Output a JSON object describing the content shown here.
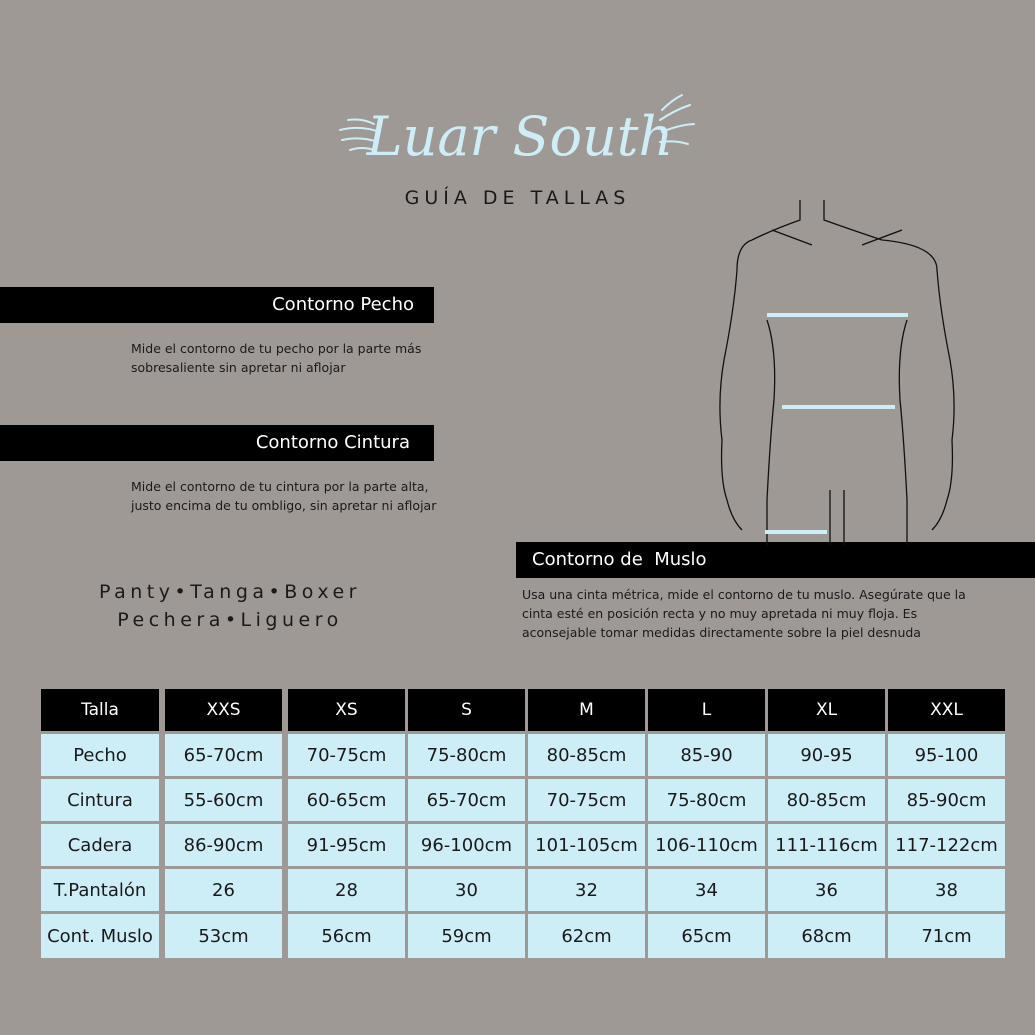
{
  "brand": "Luar South",
  "subtitle": "GUÍA DE TALLAS",
  "sections": [
    {
      "title": "Contorno Pecho",
      "description": "Mide el contorno de tu pecho por la parte más sobresaliente sin apretar ni aflojar"
    },
    {
      "title": "Contorno Cintura",
      "description": "Mide el contorno de tu cintura por la parte alta, justo encima de tu ombligo, sin apretar ni aflojar"
    },
    {
      "title": "Contorno de  Muslo",
      "description": "Usa una cinta métrica, mide el contorno de tu muslo. Asegúrate que la cinta esté en posición recta y no muy apretada ni muy floja. Es aconsejable tomar medidas directamente sobre la piel desnuda"
    }
  ],
  "products": [
    "Panty•Tanga•Boxer",
    "Pechera•Liguero"
  ],
  "colors": {
    "background": "#9f9996",
    "cell": "#cdeef7",
    "header": "#000000",
    "accent": "#cdeef7"
  },
  "table": {
    "headers": [
      "Talla",
      "XXS",
      "XS",
      "S",
      "M",
      "L",
      "XL",
      "XXL"
    ],
    "rows": [
      [
        "Pecho",
        "65-70cm",
        "70-75cm",
        "75-80cm",
        "80-85cm",
        "85-90",
        "90-95",
        "95-100"
      ],
      [
        "Cintura",
        "55-60cm",
        "60-65cm",
        "65-70cm",
        "70-75cm",
        "75-80cm",
        "80-85cm",
        "85-90cm"
      ],
      [
        "Cadera",
        "86-90cm",
        "91-95cm",
        "96-100cm",
        "101-105cm",
        "106-110cm",
        "111-116cm",
        "117-122cm"
      ],
      [
        "T.Pantalón",
        "26",
        "28",
        "30",
        "32",
        "34",
        "36",
        "38"
      ],
      [
        "Cont. Muslo",
        "53cm",
        "56cm",
        "59cm",
        "62cm",
        "65cm",
        "68cm",
        "71cm"
      ]
    ]
  }
}
